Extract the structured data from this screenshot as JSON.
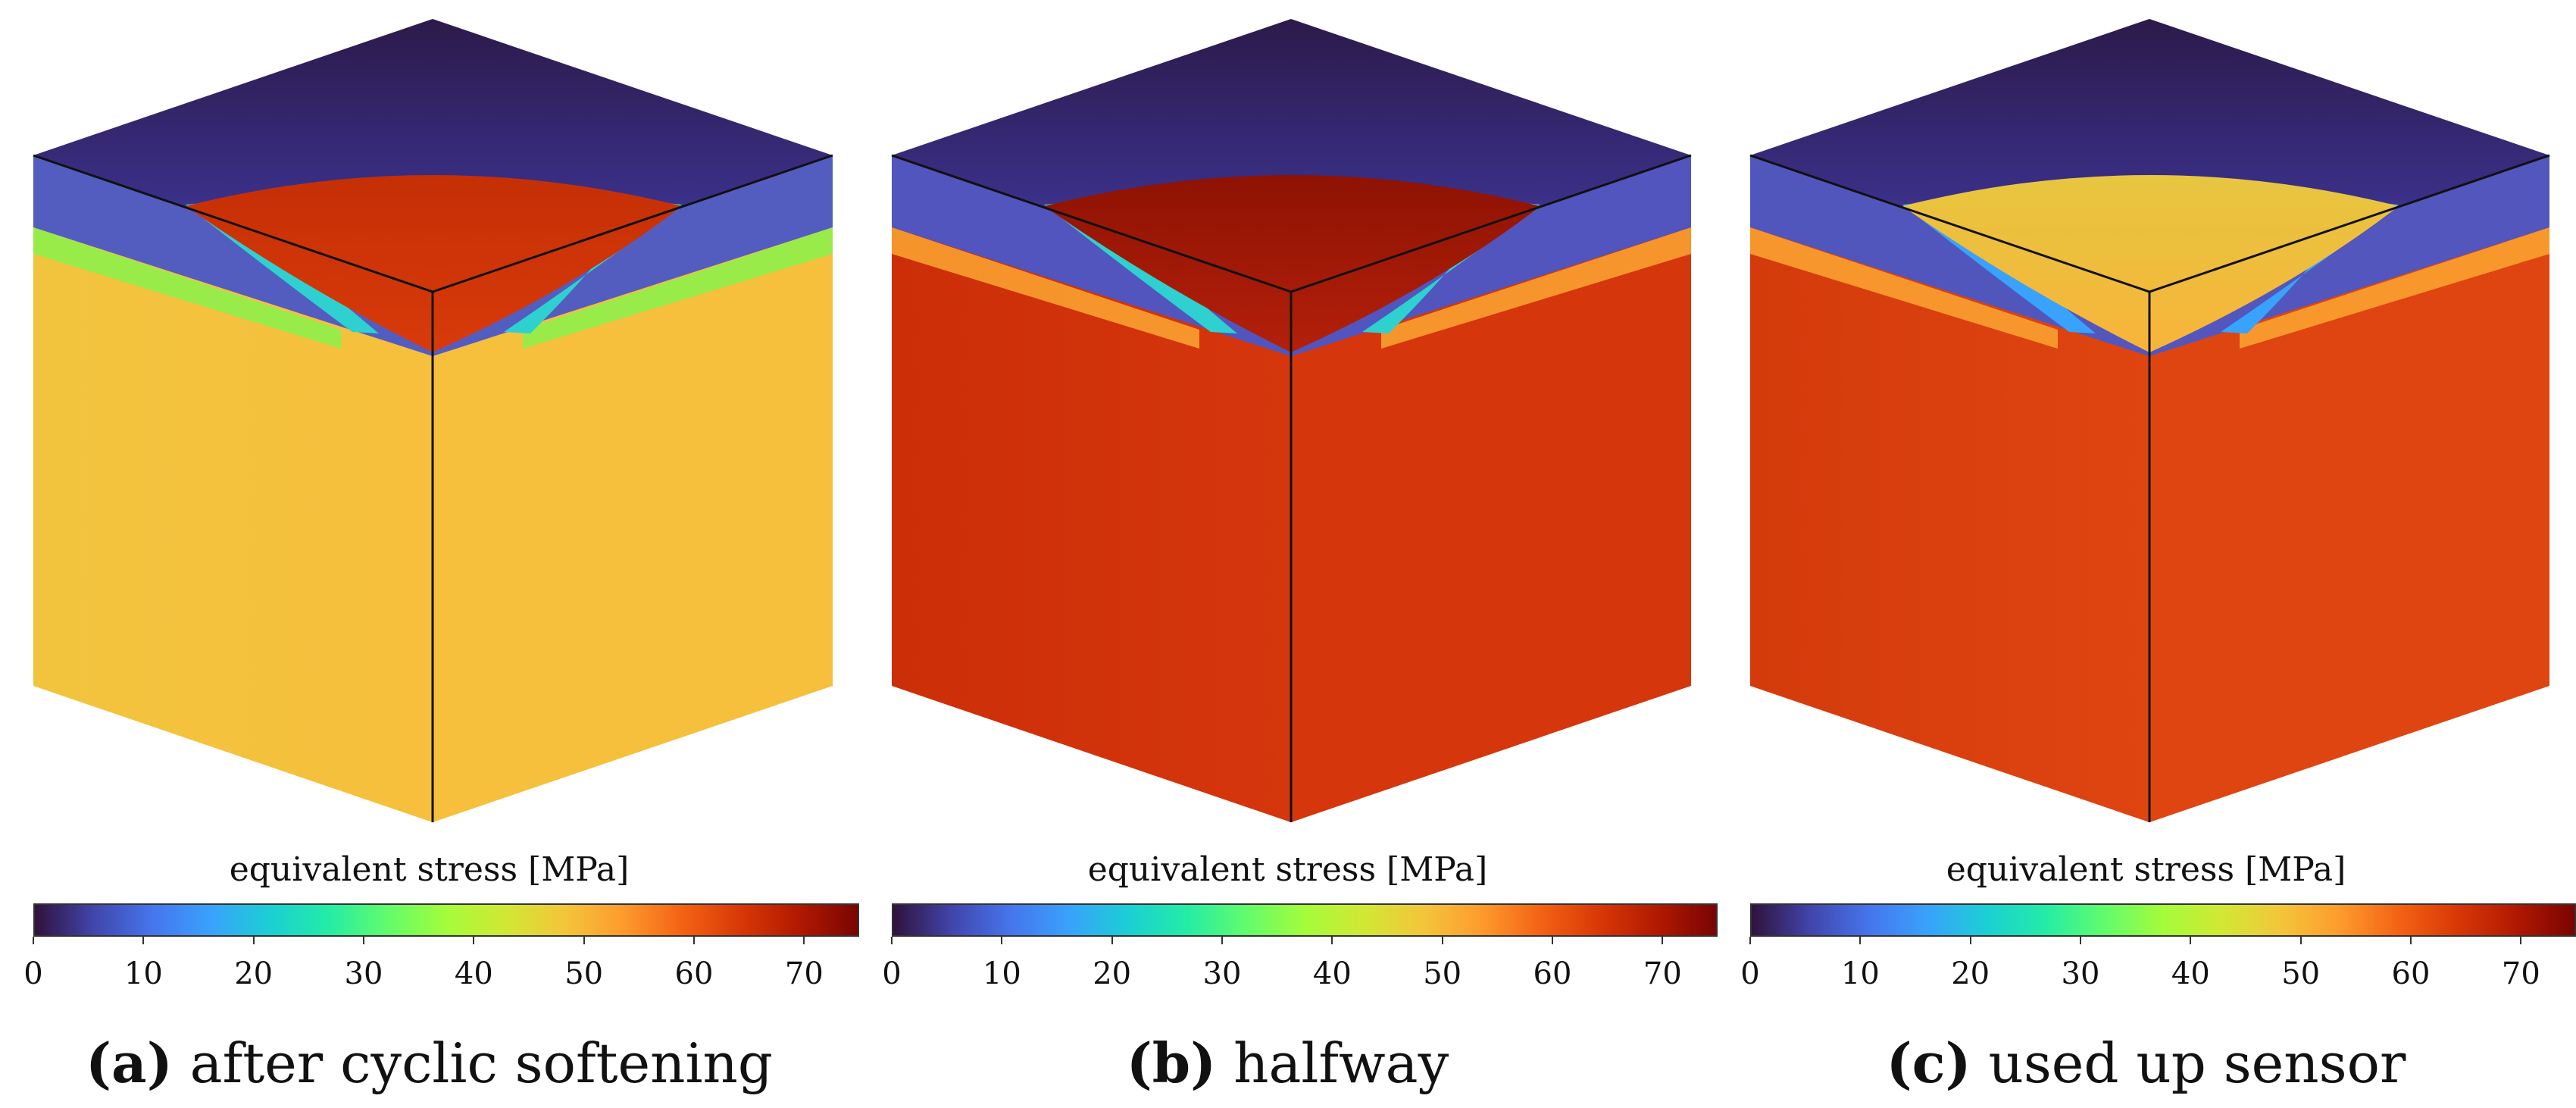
{
  "colorbar": {
    "title": "equivalent stress [MPa]",
    "min": 0,
    "max": 75,
    "ticks": [
      "0",
      "10",
      "20",
      "30",
      "40",
      "50",
      "60",
      "70"
    ],
    "colormap": [
      "#30123b",
      "#4145ab",
      "#4675ed",
      "#39a2fc",
      "#1bcfd4",
      "#24eca6",
      "#61fc6c",
      "#a4fc3b",
      "#d1e834",
      "#f3c63a",
      "#fe9b2d",
      "#f36315",
      "#d93806",
      "#b11901",
      "#7a0402"
    ]
  },
  "panels": [
    {
      "label": "(a)",
      "caption": "after cyclic softening",
      "colors": {
        "top_far": "#2c1a4a",
        "top_near": "#4a57c7",
        "crack": "#d83a0a",
        "crack_edge": "#c52f05",
        "band": "#8ef04a",
        "side": "#f6bf3c",
        "side_dark": "#f2c43e",
        "lobe": "#2fd0d0"
      }
    },
    {
      "label": "(b)",
      "caption": "halfway",
      "colors": {
        "top_far": "#2c1a4a",
        "top_near": "#4a57c7",
        "crack": "#b3200a",
        "crack_edge": "#8e1203",
        "band": "#f9a030",
        "side": "#d5360c",
        "side_dark": "#cc2e08",
        "lobe": "#2fd0d0"
      }
    },
    {
      "label": "(c)",
      "caption": "used up sensor",
      "colors": {
        "top_far": "#2c1a4a",
        "top_near": "#4a57c7",
        "crack": "#f7b43a",
        "crack_edge": "#e7c640",
        "band": "#f9a030",
        "side": "#de4511",
        "side_dark": "#d43b0c",
        "lobe": "#39a2fc"
      }
    }
  ]
}
